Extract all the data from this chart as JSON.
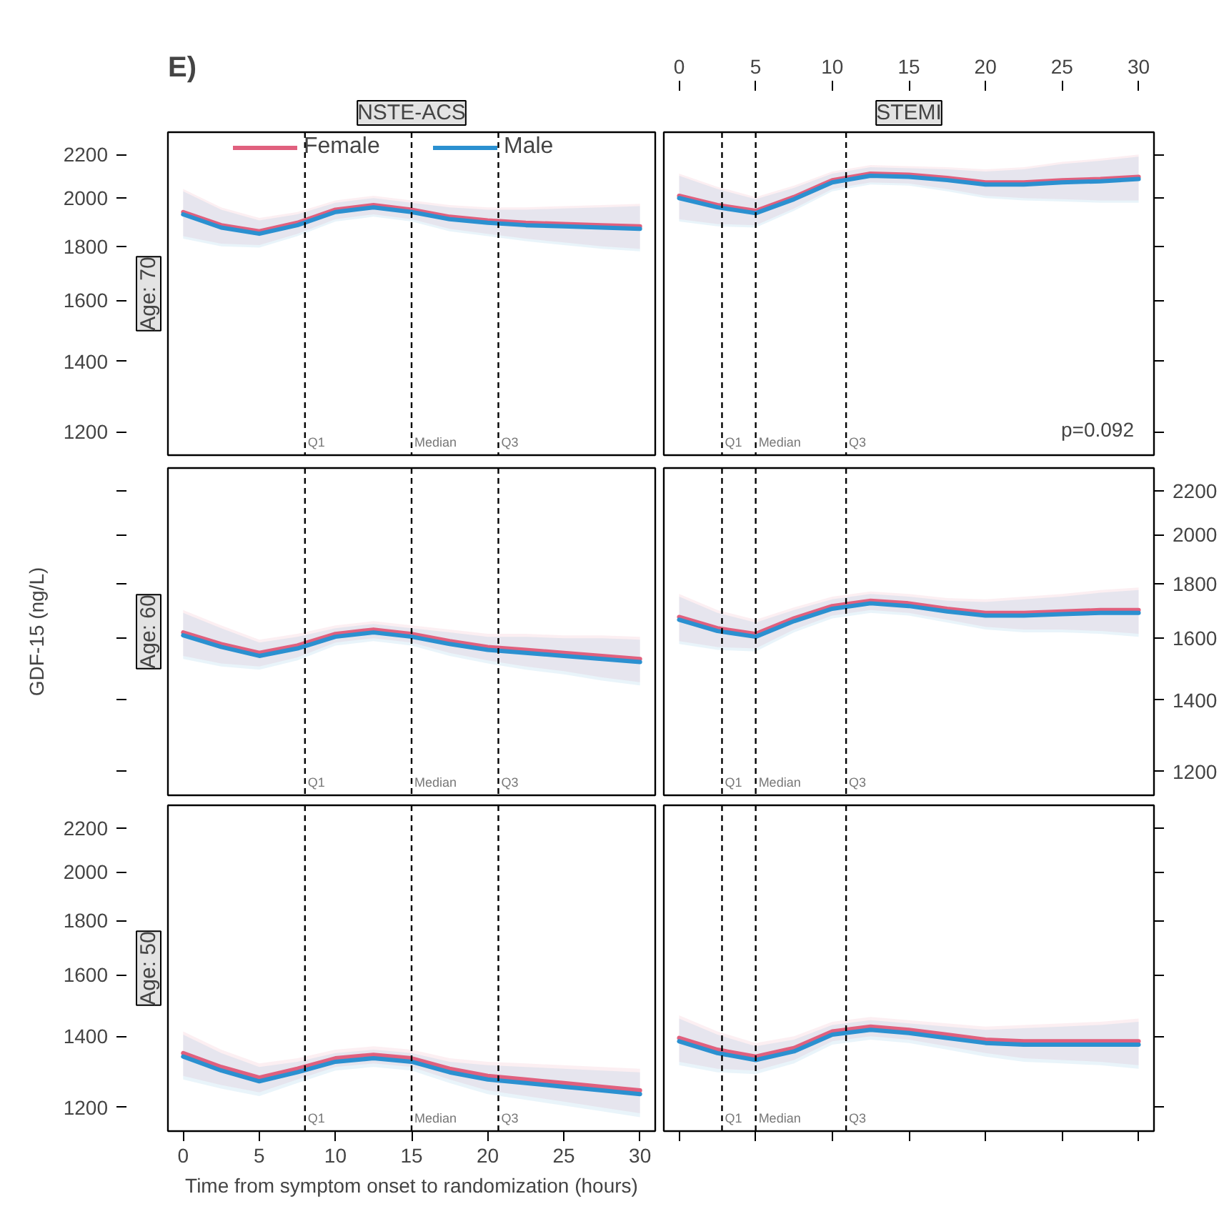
{
  "chart_data": [
    {
      "type": "line",
      "title": "NSTE-ACS",
      "subtitle": "Age: 70",
      "annotations": [
        "E)"
      ],
      "legend": "top",
      "log": true,
      "tick_labels": "y",
      "x": [
        0,
        2.5,
        5,
        7.5,
        10,
        12.5,
        15,
        17.5,
        20,
        22.5,
        25,
        27.5,
        30
      ],
      "xlim": [
        -1,
        31
      ],
      "ylim": [
        1140,
        2310
      ],
      "yticks": [
        1200,
        1400,
        1600,
        1800,
        2000,
        2200
      ],
      "ref_lines": [
        {
          "axis": "x",
          "value": 8,
          "label": "Q1"
        },
        {
          "axis": "x",
          "value": 15,
          "label": "Median"
        },
        {
          "axis": "x",
          "value": 20.7,
          "label": "Q3"
        }
      ],
      "series": [
        {
          "name": "Female",
          "color": "#e0607e",
          "values": [
            1940,
            1885,
            1860,
            1895,
            1950,
            1970,
            1950,
            1920,
            1905,
            1895,
            1890,
            1885,
            1880
          ],
          "lower": [
            1840,
            1810,
            1805,
            1850,
            1910,
            1930,
            1910,
            1870,
            1850,
            1830,
            1815,
            1800,
            1790
          ],
          "upper": [
            2040,
            1960,
            1915,
            1940,
            1990,
            2010,
            1990,
            1970,
            1960,
            1960,
            1965,
            1970,
            1975
          ]
        },
        {
          "name": "Male",
          "color": "#2b90d0",
          "values": [
            1930,
            1875,
            1850,
            1885,
            1940,
            1960,
            1940,
            1910,
            1895,
            1885,
            1880,
            1875,
            1870
          ],
          "lower": [
            1830,
            1800,
            1795,
            1840,
            1900,
            1920,
            1900,
            1860,
            1840,
            1820,
            1805,
            1790,
            1780
          ],
          "upper": [
            2030,
            1950,
            1905,
            1930,
            1980,
            2000,
            1980,
            1960,
            1950,
            1950,
            1955,
            1960,
            1965
          ]
        }
      ]
    },
    {
      "type": "line",
      "title": "STEMI",
      "annotations": [
        "p=0.092"
      ],
      "log": true,
      "tick_labels": "x",
      "x": [
        0,
        2.5,
        5,
        7.5,
        10,
        12.5,
        15,
        17.5,
        20,
        22.5,
        25,
        27.5,
        30
      ],
      "xlim": [
        -1,
        31
      ],
      "xticks": [
        0,
        5,
        10,
        15,
        20,
        25,
        30
      ],
      "ylim": [
        1140,
        2310
      ],
      "yticks": [
        1200,
        1400,
        1600,
        1800,
        2000,
        2200
      ],
      "ref_lines": [
        {
          "axis": "x",
          "value": 2.8,
          "label": "Q1"
        },
        {
          "axis": "x",
          "value": 5,
          "label": "Median"
        },
        {
          "axis": "x",
          "value": 10.9,
          "label": "Q3"
        }
      ],
      "series": [
        {
          "color": "#e0607e",
          "values": [
            2010,
            1970,
            1945,
            2005,
            2080,
            2110,
            2105,
            2090,
            2070,
            2070,
            2080,
            2085,
            2095
          ],
          "lower": [
            1910,
            1890,
            1885,
            1955,
            2040,
            2070,
            2065,
            2040,
            2010,
            2000,
            1995,
            1990,
            1990
          ],
          "upper": [
            2110,
            2050,
            2005,
            2055,
            2120,
            2150,
            2145,
            2140,
            2130,
            2140,
            2165,
            2180,
            2200
          ]
        },
        {
          "color": "#2b90d0",
          "values": [
            2000,
            1960,
            1935,
            1995,
            2070,
            2100,
            2095,
            2080,
            2060,
            2060,
            2070,
            2075,
            2085
          ],
          "lower": [
            1900,
            1880,
            1875,
            1945,
            2030,
            2060,
            2055,
            2030,
            2000,
            1990,
            1985,
            1980,
            1980
          ],
          "upper": [
            2100,
            2040,
            1995,
            2045,
            2110,
            2140,
            2135,
            2130,
            2120,
            2130,
            2155,
            2170,
            2190
          ]
        }
      ]
    },
    {
      "type": "line",
      "subtitle": "Age: 60",
      "ylabel": "GDF-15 (ng/L)",
      "log": true,
      "tick_labels": false,
      "x": [
        0,
        2.5,
        5,
        7.5,
        10,
        12.5,
        15,
        17.5,
        20,
        22.5,
        25,
        27.5,
        30
      ],
      "xlim": [
        -1,
        31
      ],
      "ylim": [
        1140,
        2310
      ],
      "yticks": [
        1200,
        1400,
        1600,
        1800,
        2000,
        2200
      ],
      "ref_lines": [
        {
          "axis": "x",
          "value": 8,
          "label": "Q1"
        },
        {
          "axis": "x",
          "value": 15,
          "label": "Median"
        },
        {
          "axis": "x",
          "value": 20.7,
          "label": "Q3"
        }
      ],
      "series": [
        {
          "color": "#e0607e",
          "values": [
            1620,
            1580,
            1550,
            1575,
            1615,
            1630,
            1615,
            1590,
            1570,
            1560,
            1550,
            1540,
            1530
          ],
          "lower": [
            1540,
            1515,
            1505,
            1535,
            1585,
            1600,
            1585,
            1550,
            1525,
            1505,
            1490,
            1470,
            1455
          ],
          "upper": [
            1700,
            1645,
            1595,
            1615,
            1645,
            1660,
            1645,
            1630,
            1615,
            1615,
            1610,
            1610,
            1605
          ]
        },
        {
          "color": "#2b90d0",
          "values": [
            1610,
            1570,
            1540,
            1565,
            1605,
            1620,
            1605,
            1580,
            1560,
            1550,
            1540,
            1530,
            1520
          ],
          "lower": [
            1530,
            1505,
            1495,
            1525,
            1575,
            1590,
            1575,
            1540,
            1515,
            1495,
            1480,
            1460,
            1445
          ],
          "upper": [
            1690,
            1635,
            1585,
            1605,
            1635,
            1650,
            1635,
            1620,
            1605,
            1605,
            1600,
            1600,
            1595
          ]
        }
      ]
    },
    {
      "type": "line",
      "log": true,
      "tick_labels": "y",
      "x": [
        0,
        2.5,
        5,
        7.5,
        10,
        12.5,
        15,
        17.5,
        20,
        22.5,
        25,
        27.5,
        30
      ],
      "xlim": [
        -1,
        31
      ],
      "ylim": [
        1140,
        2310
      ],
      "yticks": [
        1200,
        1400,
        1600,
        1800,
        2000,
        2200
      ],
      "ref_lines": [
        {
          "axis": "x",
          "value": 2.8,
          "label": "Q1"
        },
        {
          "axis": "x",
          "value": 5,
          "label": "Median"
        },
        {
          "axis": "x",
          "value": 10.9,
          "label": "Q3"
        }
      ],
      "series": [
        {
          "color": "#e0607e",
          "values": [
            1675,
            1635,
            1615,
            1670,
            1715,
            1735,
            1725,
            1705,
            1690,
            1690,
            1695,
            1700,
            1700
          ],
          "lower": [
            1590,
            1570,
            1565,
            1630,
            1680,
            1700,
            1690,
            1665,
            1640,
            1630,
            1630,
            1625,
            1615
          ],
          "upper": [
            1760,
            1700,
            1665,
            1710,
            1750,
            1770,
            1760,
            1745,
            1740,
            1750,
            1760,
            1775,
            1785
          ]
        },
        {
          "color": "#2b90d0",
          "values": [
            1665,
            1625,
            1605,
            1660,
            1705,
            1725,
            1715,
            1695,
            1680,
            1680,
            1685,
            1690,
            1690
          ],
          "lower": [
            1580,
            1560,
            1555,
            1620,
            1670,
            1690,
            1680,
            1655,
            1630,
            1620,
            1620,
            1615,
            1605
          ],
          "upper": [
            1750,
            1690,
            1655,
            1700,
            1740,
            1760,
            1750,
            1735,
            1730,
            1740,
            1750,
            1765,
            1775
          ]
        }
      ]
    },
    {
      "type": "line",
      "subtitle": "Age: 50",
      "xlabel": "Time from symptom onset to randomization (hours)",
      "log": true,
      "x": [
        0,
        2.5,
        5,
        7.5,
        10,
        12.5,
        15,
        17.5,
        20,
        22.5,
        25,
        27.5,
        30
      ],
      "xlim": [
        -1,
        31
      ],
      "xticks": [
        0,
        5,
        10,
        15,
        20,
        25,
        30
      ],
      "ylim": [
        1140,
        2310
      ],
      "yticks": [
        1200,
        1400,
        1600,
        1800,
        2000,
        2200
      ],
      "ref_lines": [
        {
          "axis": "x",
          "value": 8,
          "label": "Q1"
        },
        {
          "axis": "x",
          "value": 15,
          "label": "Median"
        },
        {
          "axis": "x",
          "value": 20.7,
          "label": "Q3"
        }
      ],
      "series": [
        {
          "color": "#e0607e",
          "values": [
            1350,
            1310,
            1280,
            1305,
            1335,
            1345,
            1335,
            1305,
            1285,
            1275,
            1265,
            1255,
            1245
          ],
          "lower": [
            1285,
            1260,
            1240,
            1275,
            1310,
            1320,
            1310,
            1275,
            1245,
            1230,
            1215,
            1200,
            1185
          ],
          "upper": [
            1415,
            1360,
            1320,
            1335,
            1360,
            1370,
            1360,
            1335,
            1325,
            1320,
            1315,
            1310,
            1305
          ]
        },
        {
          "color": "#2b90d0",
          "values": [
            1340,
            1300,
            1270,
            1295,
            1325,
            1335,
            1325,
            1295,
            1275,
            1265,
            1255,
            1245,
            1235
          ],
          "lower": [
            1275,
            1250,
            1230,
            1265,
            1300,
            1310,
            1300,
            1265,
            1235,
            1220,
            1205,
            1190,
            1175
          ],
          "upper": [
            1405,
            1350,
            1310,
            1325,
            1350,
            1360,
            1350,
            1325,
            1315,
            1310,
            1305,
            1300,
            1295
          ]
        }
      ]
    },
    {
      "type": "line",
      "log": true,
      "tick_labels": false,
      "x": [
        0,
        2.5,
        5,
        7.5,
        10,
        12.5,
        15,
        17.5,
        20,
        22.5,
        25,
        27.5,
        30
      ],
      "xlim": [
        -1,
        31
      ],
      "xticks": [
        0,
        5,
        10,
        15,
        20,
        25,
        30
      ],
      "ylim": [
        1140,
        2310
      ],
      "yticks": [
        1200,
        1400,
        1600,
        1800,
        2000,
        2200
      ],
      "ref_lines": [
        {
          "axis": "x",
          "value": 2.8,
          "label": "Q1"
        },
        {
          "axis": "x",
          "value": 5,
          "label": "Median"
        },
        {
          "axis": "x",
          "value": 10.9,
          "label": "Q3"
        }
      ],
      "series": [
        {
          "color": "#e0607e",
          "values": [
            1395,
            1360,
            1340,
            1365,
            1415,
            1430,
            1420,
            1405,
            1390,
            1385,
            1385,
            1385,
            1385
          ],
          "lower": [
            1325,
            1305,
            1300,
            1330,
            1385,
            1400,
            1390,
            1370,
            1350,
            1335,
            1330,
            1325,
            1315
          ],
          "upper": [
            1465,
            1415,
            1380,
            1400,
            1445,
            1460,
            1450,
            1440,
            1430,
            1435,
            1440,
            1445,
            1455
          ]
        },
        {
          "color": "#2b90d0",
          "values": [
            1385,
            1350,
            1330,
            1355,
            1405,
            1420,
            1410,
            1395,
            1380,
            1375,
            1375,
            1375,
            1375
          ],
          "lower": [
            1315,
            1295,
            1290,
            1320,
            1375,
            1390,
            1380,
            1360,
            1340,
            1325,
            1320,
            1315,
            1305
          ],
          "upper": [
            1455,
            1405,
            1370,
            1390,
            1435,
            1450,
            1440,
            1430,
            1420,
            1425,
            1430,
            1435,
            1445
          ]
        }
      ]
    }
  ]
}
